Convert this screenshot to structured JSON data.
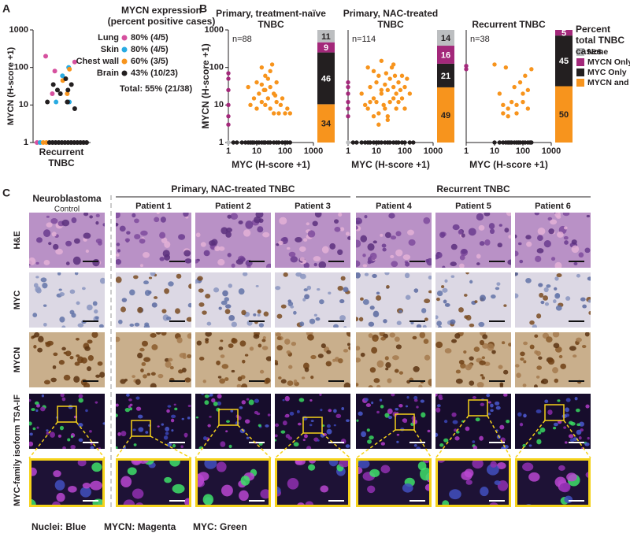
{
  "panel_labels": [
    "A",
    "B",
    "C"
  ],
  "chart_data": [
    {
      "type": "strip",
      "categories": [
        "Recurrent TNBC"
      ],
      "ylabel": "MYCN (H-score +1)",
      "ylim": [
        1,
        1000
      ],
      "yticks": [
        1,
        10,
        100,
        1000
      ],
      "log_y": true,
      "legend_title": "MYCN expression",
      "legend_subtitle": "(percent positive cases)",
      "series": [
        {
          "name": "Lung",
          "color": "#d6519f",
          "summary": "80% (4/5)",
          "values": [
            200,
            140,
            80,
            20,
            1
          ]
        },
        {
          "name": "Skin",
          "color": "#29abe2",
          "summary": "80% (4/5)",
          "values": [
            100,
            60,
            12,
            12,
            1
          ]
        },
        {
          "name": "Chest wall",
          "color": "#f7941d",
          "summary": "60% (3/5)",
          "values": [
            90,
            45,
            20,
            1,
            1
          ]
        },
        {
          "name": "Brain",
          "color": "#231f20",
          "summary": "43% (10/23)",
          "values": [
            50,
            35,
            35,
            25,
            25,
            12,
            12,
            12,
            20,
            8,
            1,
            1,
            1,
            1,
            1,
            1,
            1,
            1,
            1,
            1,
            1,
            1,
            1
          ]
        }
      ],
      "total": "Total: 55% (21/38)"
    },
    {
      "type": "scatter",
      "title": "Primary, treatment-naïve TNBC",
      "annotation": "n=88",
      "xlabel": "MYC (H-score +1)",
      "ylabel": "MYCN (H-score +1)",
      "xlim": [
        1,
        1000
      ],
      "ylim": [
        1,
        1000
      ],
      "xticks": [
        1,
        10,
        100,
        1000
      ],
      "yticks": [
        1,
        10,
        100,
        1000
      ],
      "log_x": true,
      "log_y": true,
      "groups": [
        {
          "x": [
            1
          ],
          "y": [
            1
          ]
        },
        {
          "x": [
            1,
            1,
            1,
            1,
            1,
            1
          ],
          "y": [
            70,
            50,
            25,
            10,
            5,
            3
          ]
        },
        {
          "x": [
            1.5,
            2,
            3,
            4,
            5,
            6,
            7,
            8,
            10,
            12,
            15,
            18,
            20,
            25,
            30,
            40,
            50,
            60,
            80,
            100,
            120,
            150
          ],
          "y": [
            1,
            1,
            1,
            1,
            1,
            1,
            1,
            1,
            1,
            1,
            1,
            1,
            1,
            1,
            1,
            1,
            1,
            1,
            1,
            1,
            1,
            1
          ]
        },
        {
          "x": [
            5,
            6,
            8,
            10,
            10,
            12,
            15,
            15,
            18,
            20,
            20,
            25,
            25,
            30,
            30,
            35,
            40,
            40,
            50,
            50,
            60,
            70,
            80,
            100,
            120,
            150,
            20,
            30,
            15,
            45
          ],
          "y": [
            30,
            10,
            15,
            8,
            40,
            20,
            100,
            12,
            25,
            60,
            10,
            50,
            15,
            30,
            8,
            120,
            20,
            6,
            12,
            40,
            6,
            10,
            15,
            6,
            8,
            6,
            25,
            80,
            35,
            18
          ]
        }
      ],
      "bar_values": [
        11,
        9,
        46,
        34
      ]
    },
    {
      "type": "scatter",
      "title": "Primary, NAC-treated TNBC",
      "annotation": "n=114",
      "xlabel": "MYC (H-score +1)",
      "xlim": [
        1,
        1000
      ],
      "ylim": [
        1,
        1000
      ],
      "xticks": [
        1,
        10,
        100,
        1000
      ],
      "log_x": true,
      "log_y": true,
      "groups": [
        {
          "x": [
            1
          ],
          "y": [
            1
          ]
        },
        {
          "x": [
            1,
            1,
            1,
            1,
            1,
            1
          ],
          "y": [
            40,
            30,
            20,
            12,
            8,
            5
          ]
        },
        {
          "x": [
            1.5,
            2,
            3,
            4,
            5,
            6,
            8,
            10,
            12,
            15,
            20,
            25,
            30,
            40,
            50,
            60,
            80,
            100,
            150,
            200
          ],
          "y": [
            1,
            1,
            1,
            1,
            1,
            1,
            1,
            1,
            1,
            1,
            1,
            1,
            1,
            1,
            1,
            1,
            1,
            1,
            1,
            1
          ]
        },
        {
          "x": [
            3,
            4,
            5,
            5,
            6,
            8,
            8,
            10,
            10,
            12,
            12,
            15,
            15,
            18,
            20,
            20,
            22,
            25,
            25,
            30,
            30,
            35,
            40,
            40,
            45,
            50,
            50,
            60,
            60,
            70,
            80,
            80,
            100,
            100,
            120,
            150,
            8,
            15,
            25,
            40,
            6,
            12
          ],
          "y": [
            20,
            10,
            100,
            8,
            30,
            15,
            5,
            40,
            12,
            60,
            6,
            20,
            150,
            10,
            35,
            8,
            70,
            25,
            4,
            50,
            12,
            100,
            15,
            30,
            60,
            20,
            8,
            40,
            12,
            25,
            60,
            15,
            30,
            8,
            50,
            20,
            80,
            25,
            5,
            120,
            12,
            3
          ]
        }
      ],
      "bar_values": [
        14,
        16,
        21,
        49
      ]
    },
    {
      "type": "scatter",
      "title": "Recurrent TNBC",
      "annotation": "n=38",
      "xlabel": "MYC (H-score +1)",
      "xlim": [
        1,
        1000
      ],
      "ylim": [
        1,
        1000
      ],
      "xticks": [
        1,
        10,
        100,
        1000
      ],
      "log_x": true,
      "log_y": true,
      "groups": [
        {
          "x": [],
          "y": []
        },
        {
          "x": [
            1,
            1
          ],
          "y": [
            110,
            90
          ]
        },
        {
          "x": [
            10,
            15,
            20,
            30,
            40,
            50,
            60,
            70,
            80,
            100,
            120,
            150,
            180,
            200,
            25,
            35
          ],
          "y": [
            1,
            1,
            1,
            1,
            1,
            1,
            1,
            1,
            1,
            1,
            1,
            1,
            1,
            1,
            1,
            1
          ]
        },
        {
          "x": [
            10,
            15,
            20,
            25,
            30,
            40,
            50,
            60,
            80,
            100,
            120,
            150,
            150,
            200,
            30,
            60,
            100,
            20
          ],
          "y": [
            120,
            20,
            10,
            100,
            8,
            12,
            30,
            10,
            40,
            20,
            60,
            25,
            8,
            90,
            5,
            6,
            12,
            6
          ]
        }
      ],
      "bar_values": [
        0,
        5,
        45,
        50
      ]
    }
  ],
  "legend_b": {
    "title": "Percent total TNBC cases",
    "entries": [
      {
        "name": "None",
        "color": "#bcbec0"
      },
      {
        "name": "MYCN Only",
        "color": "#a3287a"
      },
      {
        "name": "MYC Only",
        "color": "#231f20"
      },
      {
        "name": "MYCN and MYC",
        "color": "#f7941d"
      }
    ]
  },
  "panel_c": {
    "control_header": "Neuroblastoma",
    "control_sub": "Control",
    "groups": [
      "Primary, NAC-treated TNBC",
      "Recurrent TNBC"
    ],
    "columns": [
      "Patient 1",
      "Patient 2",
      "Patient 3",
      "Patient 4",
      "Patient 5",
      "Patient 6"
    ],
    "rows": [
      "H&E",
      "MYC",
      "MYCN"
    ],
    "if_label": "MYC-family isoform TSA-IF",
    "footer": [
      "Nuclei: Blue",
      "MYCN: Magenta",
      "MYC: Green"
    ]
  }
}
